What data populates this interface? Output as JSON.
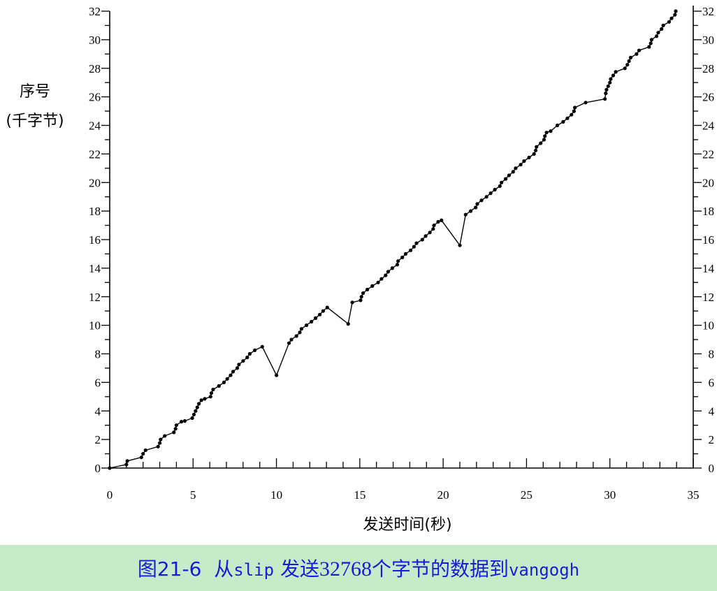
{
  "chart_data": {
    "type": "line",
    "title": "",
    "xlabel": "发送时间(秒)",
    "ylabel_lines": [
      "序号",
      "(千字节)"
    ],
    "xlim": [
      0,
      35
    ],
    "ylim": [
      0,
      32
    ],
    "x_ticks": [
      0,
      5,
      10,
      15,
      20,
      25,
      30,
      35
    ],
    "y_ticks": [
      0,
      2,
      4,
      6,
      8,
      10,
      12,
      14,
      16,
      18,
      20,
      22,
      24,
      26,
      28,
      30,
      32
    ],
    "grid": false,
    "series": [
      {
        "points": [
          [
            0,
            0
          ],
          [
            1.0,
            0.25
          ],
          [
            1.05,
            0.5
          ],
          [
            1.9,
            0.75
          ],
          [
            2.0,
            1.0
          ],
          [
            2.15,
            1.25
          ],
          [
            2.9,
            1.5
          ],
          [
            3.0,
            1.75
          ],
          [
            3.05,
            2.0
          ],
          [
            3.3,
            2.25
          ],
          [
            3.85,
            2.5
          ],
          [
            3.95,
            2.75
          ],
          [
            4.0,
            3.0
          ],
          [
            4.3,
            3.25
          ],
          [
            4.5,
            3.3
          ],
          [
            4.95,
            3.5
          ],
          [
            5.05,
            3.75
          ],
          [
            5.15,
            4.0
          ],
          [
            5.25,
            4.25
          ],
          [
            5.35,
            4.5
          ],
          [
            5.5,
            4.75
          ],
          [
            5.7,
            4.85
          ],
          [
            6.05,
            5.0
          ],
          [
            6.1,
            5.25
          ],
          [
            6.2,
            5.5
          ],
          [
            6.55,
            5.75
          ],
          [
            6.85,
            6.0
          ],
          [
            7.05,
            6.25
          ],
          [
            7.25,
            6.5
          ],
          [
            7.4,
            6.75
          ],
          [
            7.65,
            7.0
          ],
          [
            7.75,
            7.25
          ],
          [
            8.0,
            7.5
          ],
          [
            8.25,
            7.75
          ],
          [
            8.4,
            8.0
          ],
          [
            8.7,
            8.25
          ],
          [
            9.15,
            8.5
          ],
          [
            10.0,
            6.5
          ],
          [
            10.75,
            8.75
          ],
          [
            10.9,
            9.0
          ],
          [
            11.2,
            9.25
          ],
          [
            11.4,
            9.5
          ],
          [
            11.5,
            9.75
          ],
          [
            11.8,
            10.0
          ],
          [
            12.1,
            10.25
          ],
          [
            12.35,
            10.5
          ],
          [
            12.6,
            10.75
          ],
          [
            12.8,
            11.0
          ],
          [
            13.05,
            11.25
          ],
          [
            14.3,
            10.1
          ],
          [
            14.55,
            11.6
          ],
          [
            15.05,
            11.75
          ],
          [
            15.1,
            12.0
          ],
          [
            15.2,
            12.25
          ],
          [
            15.45,
            12.5
          ],
          [
            15.75,
            12.75
          ],
          [
            16.1,
            13.0
          ],
          [
            16.3,
            13.25
          ],
          [
            16.55,
            13.5
          ],
          [
            16.7,
            13.75
          ],
          [
            16.95,
            14.0
          ],
          [
            17.25,
            14.25
          ],
          [
            17.3,
            14.5
          ],
          [
            17.55,
            14.75
          ],
          [
            17.75,
            15.0
          ],
          [
            18.05,
            15.25
          ],
          [
            18.25,
            15.5
          ],
          [
            18.4,
            15.75
          ],
          [
            18.75,
            16.0
          ],
          [
            18.95,
            16.25
          ],
          [
            19.2,
            16.5
          ],
          [
            19.4,
            16.75
          ],
          [
            19.45,
            17.0
          ],
          [
            19.7,
            17.25
          ],
          [
            19.9,
            17.35
          ],
          [
            21.0,
            15.6
          ],
          [
            21.35,
            17.75
          ],
          [
            21.65,
            18.0
          ],
          [
            21.95,
            18.25
          ],
          [
            22.05,
            18.5
          ],
          [
            22.3,
            18.75
          ],
          [
            22.6,
            19.0
          ],
          [
            22.85,
            19.25
          ],
          [
            23.1,
            19.5
          ],
          [
            23.4,
            19.75
          ],
          [
            23.5,
            20.0
          ],
          [
            23.75,
            20.25
          ],
          [
            23.95,
            20.5
          ],
          [
            24.2,
            20.75
          ],
          [
            24.35,
            21.0
          ],
          [
            24.65,
            21.25
          ],
          [
            24.85,
            21.5
          ],
          [
            25.15,
            21.75
          ],
          [
            25.45,
            22.0
          ],
          [
            25.55,
            22.25
          ],
          [
            25.6,
            22.5
          ],
          [
            25.85,
            22.75
          ],
          [
            26.05,
            23.0
          ],
          [
            26.1,
            23.25
          ],
          [
            26.2,
            23.5
          ],
          [
            26.45,
            23.6
          ],
          [
            26.85,
            24.0
          ],
          [
            27.2,
            24.25
          ],
          [
            27.45,
            24.5
          ],
          [
            27.7,
            24.75
          ],
          [
            27.85,
            25.0
          ],
          [
            27.9,
            25.25
          ],
          [
            28.55,
            25.6
          ],
          [
            29.7,
            25.85
          ],
          [
            29.75,
            26.25
          ],
          [
            29.8,
            26.5
          ],
          [
            29.9,
            26.75
          ],
          [
            30.0,
            27.0
          ],
          [
            30.05,
            27.25
          ],
          [
            30.2,
            27.5
          ],
          [
            30.35,
            27.75
          ],
          [
            30.9,
            28.0
          ],
          [
            31.05,
            28.25
          ],
          [
            31.15,
            28.5
          ],
          [
            31.25,
            28.75
          ],
          [
            31.6,
            29.0
          ],
          [
            31.75,
            29.25
          ],
          [
            32.35,
            29.5
          ],
          [
            32.45,
            29.75
          ],
          [
            32.5,
            30.0
          ],
          [
            32.8,
            30.25
          ],
          [
            32.9,
            30.5
          ],
          [
            33.1,
            30.75
          ],
          [
            33.2,
            31.0
          ],
          [
            33.55,
            31.25
          ],
          [
            33.7,
            31.5
          ],
          [
            33.9,
            31.75
          ],
          [
            33.95,
            32.0
          ]
        ]
      }
    ]
  },
  "caption": {
    "figure_no": "图21-6",
    "text_from": "从",
    "host_from": "slip",
    "text_send": "发送",
    "bytes": "32768",
    "text_rest": "个字节的数据到",
    "host_to": "vangogh"
  }
}
